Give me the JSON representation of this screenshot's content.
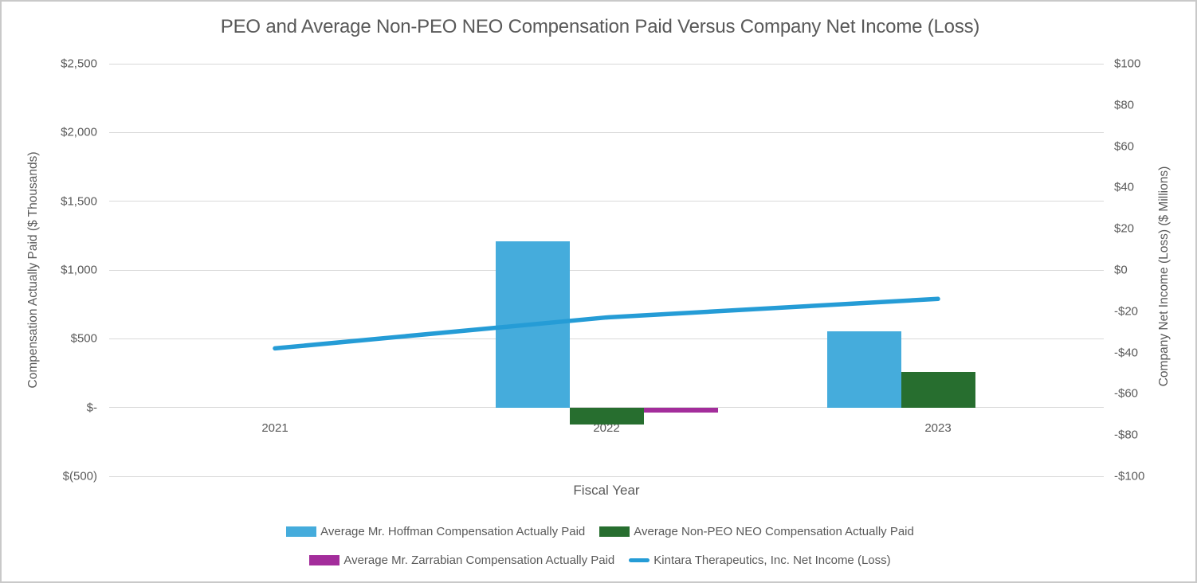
{
  "title": "PEO and Average Non-PEO NEO Compensation Paid Versus Company Net Income (Loss)",
  "chart_data": {
    "type": "bar",
    "subtype": "combo-bar-line-dual-axis",
    "categories": [
      "2021",
      "2022",
      "2023"
    ],
    "series": [
      {
        "name": "Average Mr. Hoffman Compensation Actually Paid",
        "type": "bar",
        "axis": "left",
        "color": "#45ACDC",
        "values": [
          null,
          1210,
          555
        ]
      },
      {
        "name": "Average Non-PEO NEO Compensation Actually Paid",
        "type": "bar",
        "axis": "left",
        "color": "#276E2F",
        "values": [
          null,
          -125,
          260
        ]
      },
      {
        "name": "Average Mr. Zarrabian Compensation Actually Paid",
        "type": "bar",
        "axis": "left",
        "color": "#A32D9B",
        "values": [
          null,
          -35,
          null
        ]
      },
      {
        "name": "Kintara Therapeutics, Inc. Net Income (Loss)",
        "type": "line",
        "axis": "right",
        "color": "#259CD6",
        "values": [
          -38,
          -23,
          -14
        ]
      }
    ],
    "xlabel": "Fiscal Year",
    "left_axis": {
      "label": "Compensation Actually Paid ($ Thousands)",
      "min": -500,
      "max": 2500,
      "tick_values": [
        2500,
        2000,
        1500,
        1000,
        500,
        0,
        -500
      ],
      "tick_labels": [
        "$2,500",
        "$2,000",
        "$1,500",
        "$1,000",
        "$500",
        "$-",
        "$(500)"
      ]
    },
    "right_axis": {
      "label": "Company Net Income (Loss) ($ Millions)",
      "min": -100,
      "max": 100,
      "tick_values": [
        100,
        80,
        60,
        40,
        20,
        0,
        -20,
        -40,
        -60,
        -80,
        -100
      ],
      "tick_labels": [
        "$100",
        "$80",
        "$60",
        "$40",
        "$20",
        "$0",
        "-$20",
        "-$40",
        "-$60",
        "-$80",
        "-$100"
      ]
    },
    "grid": true,
    "legend_position": "bottom",
    "legend_rows": [
      [
        0,
        1
      ],
      [
        2,
        3
      ]
    ]
  },
  "colors": {
    "text": "#595959",
    "gridline": "#d9d9d9",
    "hoffman_bar": "#45ACDC",
    "non_peo_neo_bar": "#276E2F",
    "zarrabian_bar": "#A32D9B",
    "net_income_line": "#259CD6"
  }
}
